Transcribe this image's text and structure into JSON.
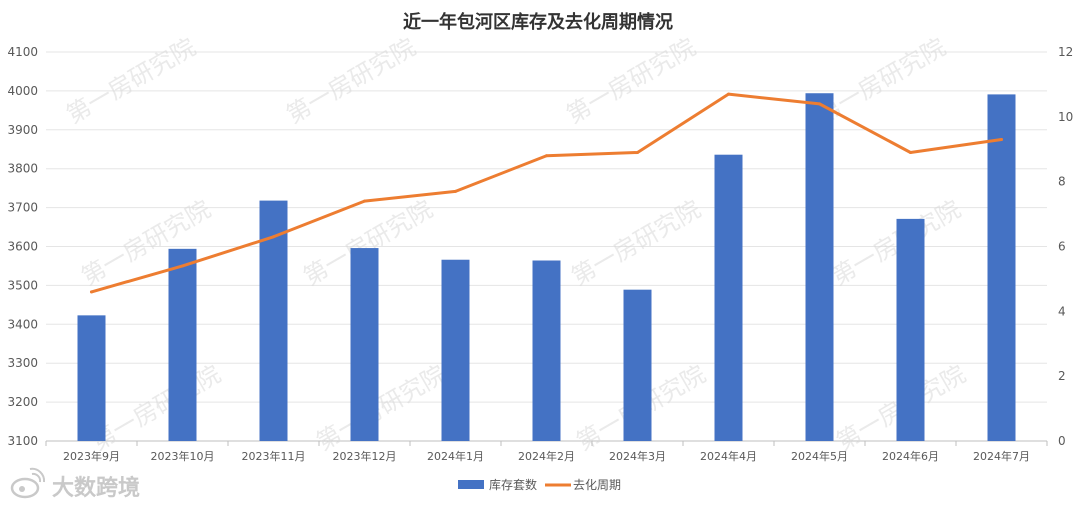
{
  "chart_data": {
    "type": "bar",
    "title": "近一年包河区库存及去化周期情况",
    "categories": [
      "2023年9月",
      "2023年10月",
      "2023年11月",
      "2023年12月",
      "2024年1月",
      "2024年2月",
      "2024年3月",
      "2024年4月",
      "2024年5月",
      "2024年6月",
      "2024年7月"
    ],
    "series": [
      {
        "name": "库存套数",
        "type": "bar",
        "axis": "left",
        "color": "#4472C4",
        "values": [
          3423,
          3594,
          3718,
          3596,
          3566,
          3564,
          3489,
          3836,
          3994,
          3671,
          3991
        ]
      },
      {
        "name": "去化周期",
        "type": "line",
        "axis": "right",
        "color": "#ED7D31",
        "values": [
          4.6,
          5.4,
          6.3,
          7.4,
          7.7,
          8.8,
          8.9,
          10.7,
          10.4,
          8.9,
          9.3
        ]
      }
    ],
    "ylim_left": [
      3100,
      4100
    ],
    "left_ticks": [
      "3100",
      "3200",
      "3300",
      "3400",
      "3500",
      "3600",
      "3700",
      "3800",
      "3900",
      "4000",
      "4100"
    ],
    "ylim_right": [
      0,
      12
    ],
    "right_ticks": [
      "0",
      "2",
      "4",
      "6",
      "8",
      "10",
      "12"
    ],
    "grid": true,
    "legend_position": "bottom"
  },
  "watermark": "第一房研究院",
  "logo": {
    "text": "大数跨境",
    "icon": "weibo-icon"
  }
}
